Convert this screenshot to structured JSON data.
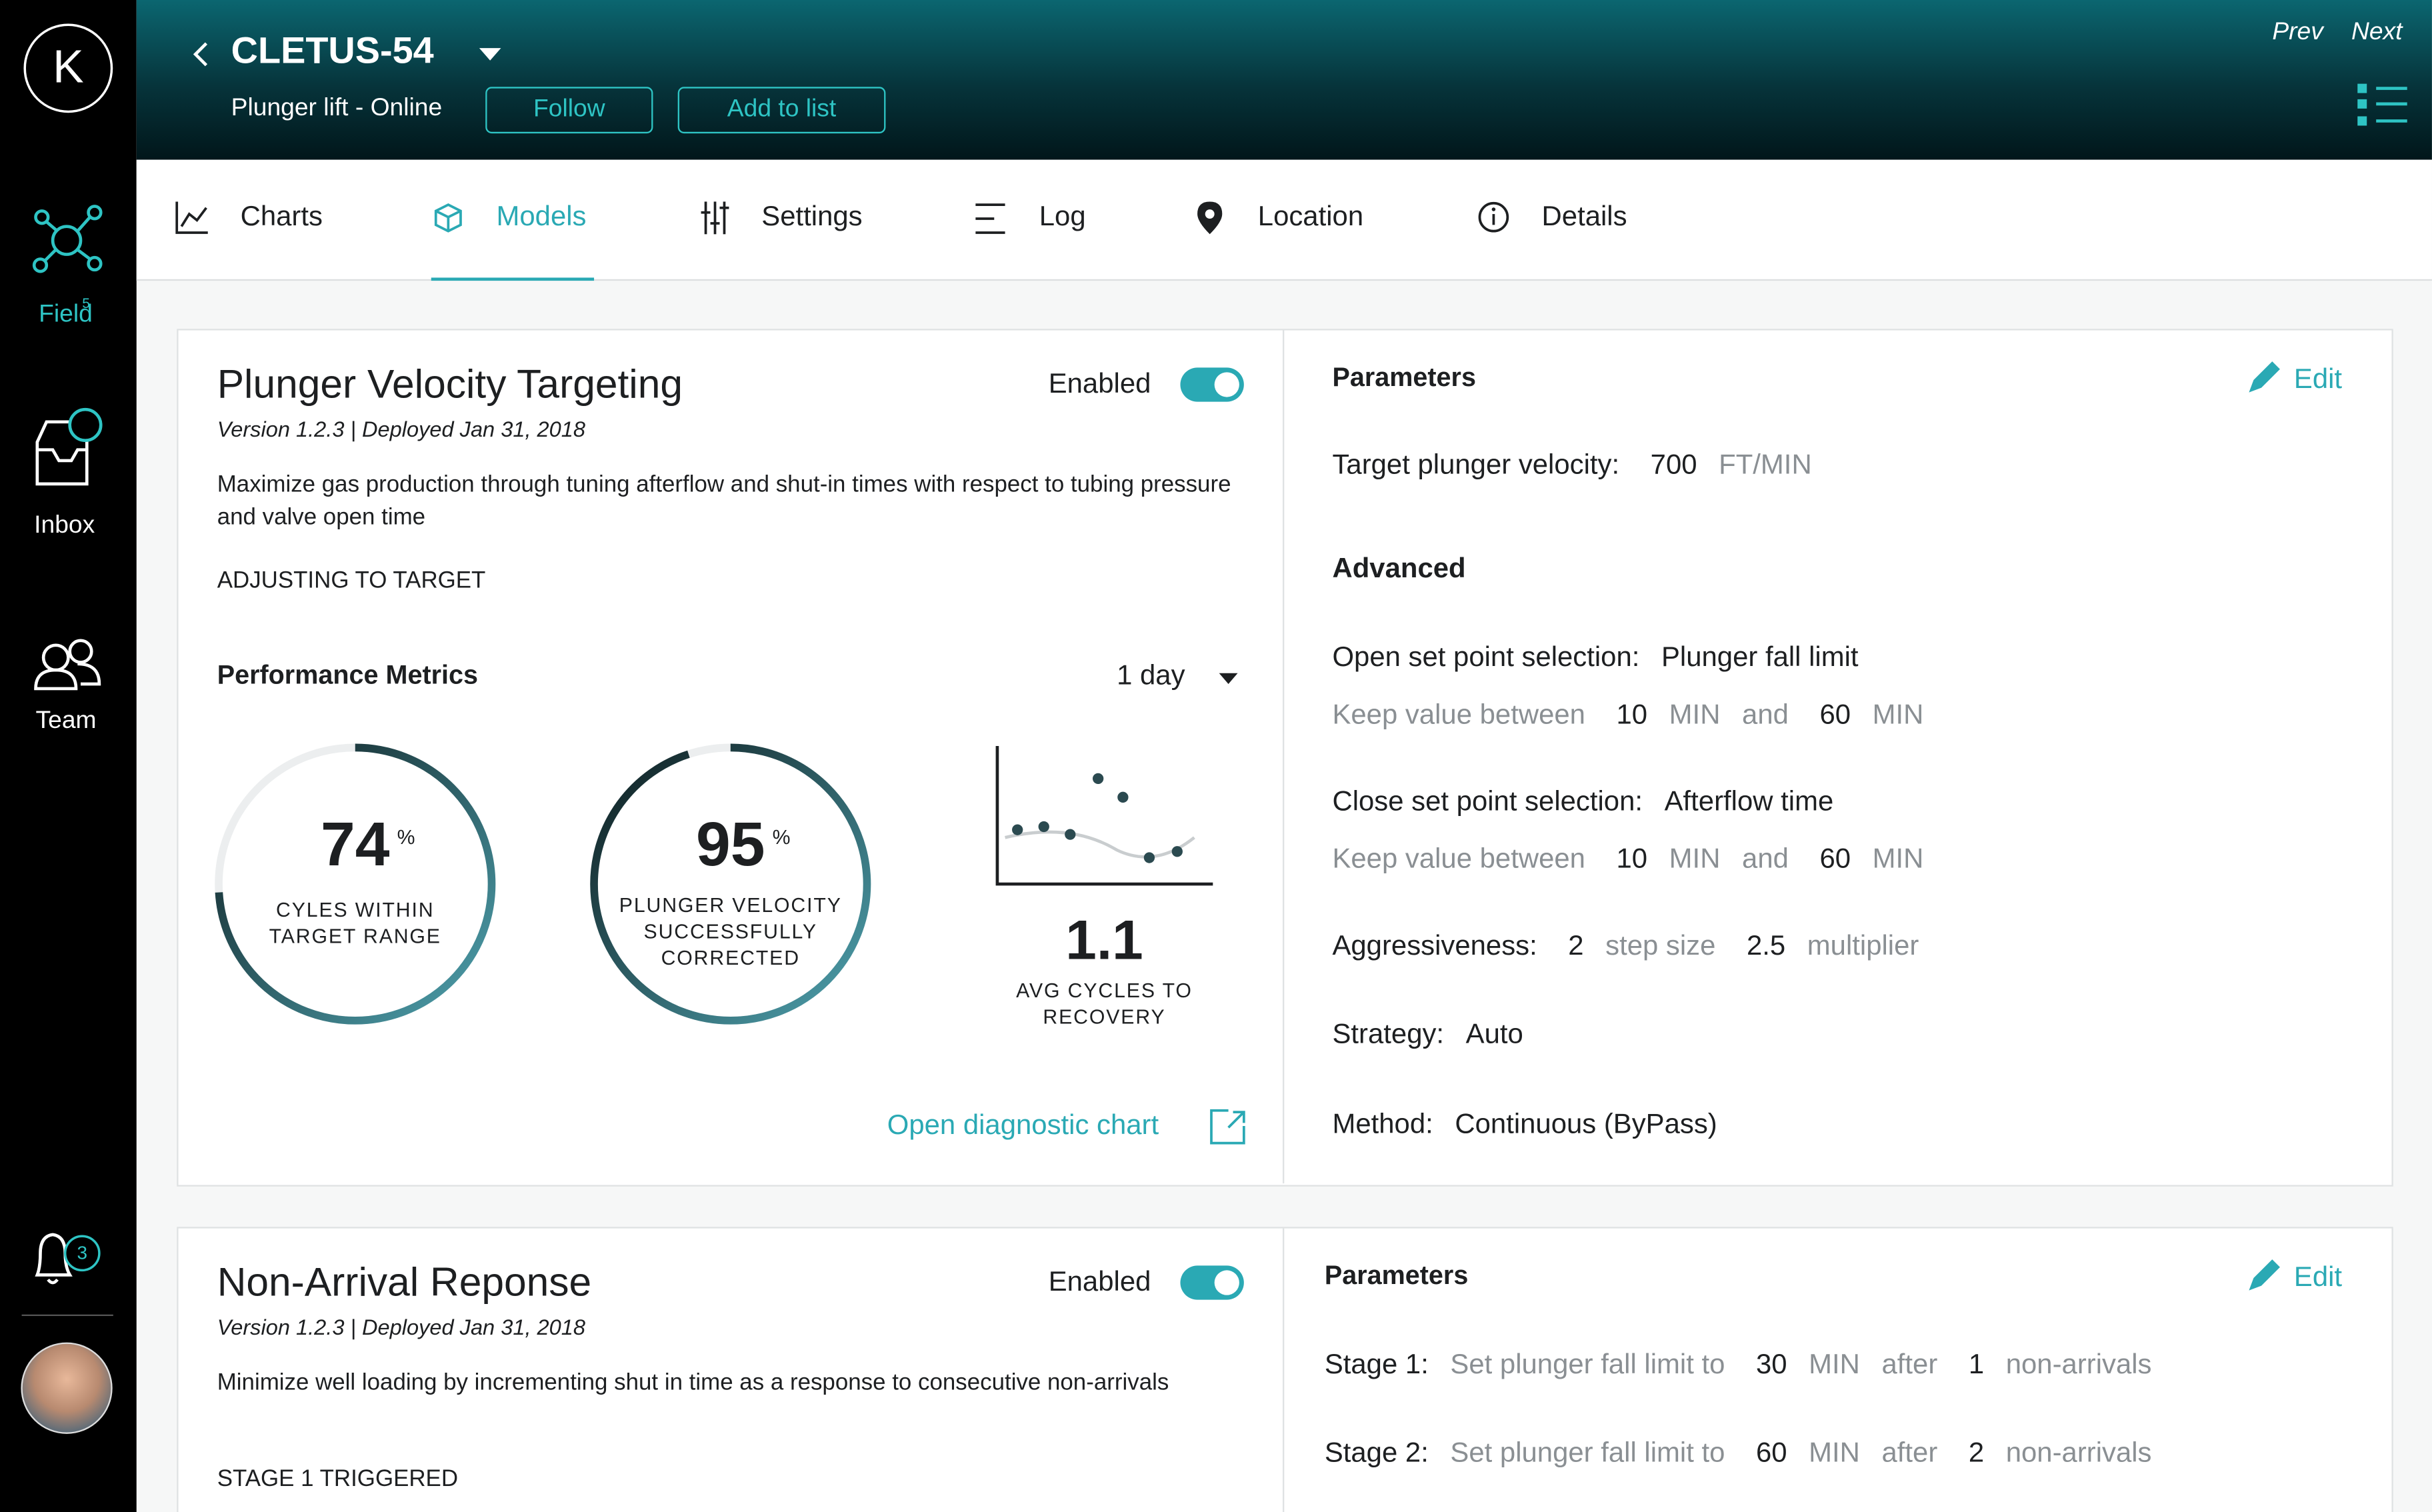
{
  "header": {
    "prev": "Prev",
    "next": "Next",
    "well": "CLETUS-54",
    "status": "Plunger lift - Online",
    "buttons": [
      "Follow",
      "Add to list"
    ]
  },
  "sidebar": {
    "logo": "K",
    "nav": [
      {
        "label": "Field",
        "badge": 5
      },
      {
        "label": "Inbox"
      },
      {
        "label": "Team"
      }
    ],
    "notifications": 3
  },
  "tabs": [
    "Charts",
    "Models",
    "Settings",
    "Log",
    "Location",
    "Details"
  ],
  "active_tab": 1,
  "models": [
    {
      "title": "Plunger Velocity Targeting",
      "version": "Version 1.2.3 | Deployed Jan 31, 2018",
      "description": "Maximize gas production through tuning afterflow and shut-in times with respect to tubing pressure and valve open time",
      "status": "ADJUSTING TO TARGET",
      "toggle": "Enabled",
      "metrics_title": "Performance Metrics",
      "period": "1 day",
      "metrics": [
        {
          "value": 74,
          "unit": "%",
          "label": "CYLES WITHIN TARGET RANGE"
        },
        {
          "value": 95,
          "unit": "%",
          "label": "PLUNGER VELOCITY SUCCESSFULLY CORRECTED"
        },
        {
          "value": 1.1,
          "label": "AVG CYCLES TO RECOVERY"
        }
      ],
      "link": "Open diagnostic chart",
      "parameters": {
        "title": "Parameters",
        "edit": "Edit",
        "main": [
          [
            "Target plunger velocity:",
            700,
            "FT/MIN"
          ]
        ],
        "advanced_title": "Advanced",
        "advanced": [
          [
            "Open set point selection:",
            "Plunger fall limit"
          ],
          [
            "Keep value between",
            10,
            "MIN",
            "and",
            60,
            "MIN"
          ],
          [
            "Close set point selection:",
            "Afterflow time"
          ],
          [
            "Keep value between",
            10,
            "MIN",
            "and",
            60,
            "MIN"
          ],
          [
            "Aggressiveness:",
            2,
            "step size",
            2.5,
            "multiplier"
          ],
          [
            "Strategy:",
            "Auto"
          ],
          [
            "Method:",
            "Continuous (ByPass)"
          ]
        ]
      }
    },
    {
      "title": "Non-Arrival Reponse",
      "version": "Version 1.2.3 | Deployed Jan 31, 2018",
      "description": "Minimize well loading by incrementing shut in time as a response to consecutive non-arrivals",
      "status": "STAGE 1 TRIGGERED",
      "toggle": "Enabled",
      "parameters": {
        "title": "Parameters",
        "edit": "Edit",
        "main": [
          [
            "Stage 1:",
            "Set plunger fall limit to",
            30,
            "MIN",
            "after",
            1,
            "non-arrivals"
          ],
          [
            "Stage 2:",
            "Set plunger fall limit to",
            60,
            "MIN",
            "after",
            2,
            "non-arrivals"
          ]
        ]
      }
    }
  ]
}
